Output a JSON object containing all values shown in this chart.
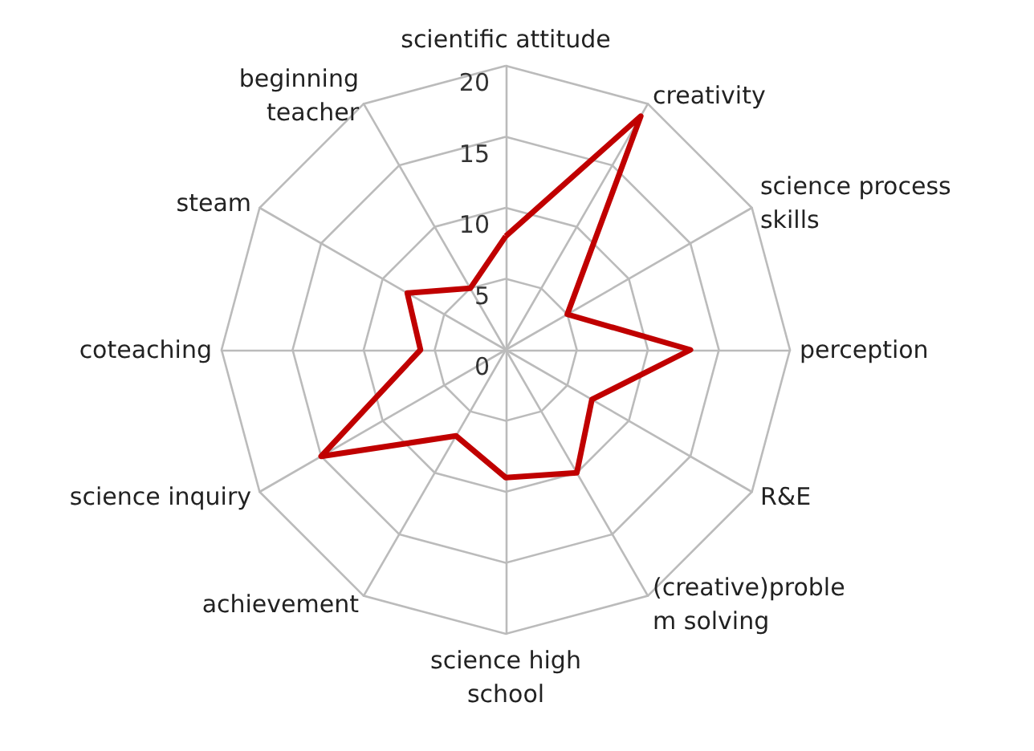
{
  "chart_data": {
    "type": "radar",
    "categories": [
      "scientific attitude",
      "creativity",
      "science process\nskills",
      "perception",
      "R&E",
      "(creative)proble\nm solving",
      "science high\nschool",
      "achievement",
      "science inquiry",
      "coteaching",
      "steam",
      "beginning\nteacher"
    ],
    "series": [
      {
        "color": "#c00000",
        "values": [
          8,
          19,
          5,
          13,
          7,
          10,
          9,
          7,
          15,
          6,
          8,
          5
        ]
      }
    ],
    "ylim": [
      0,
      20
    ],
    "yticks": [
      0,
      5,
      10,
      15,
      20
    ],
    "marker": "none",
    "line_style": "solid"
  }
}
